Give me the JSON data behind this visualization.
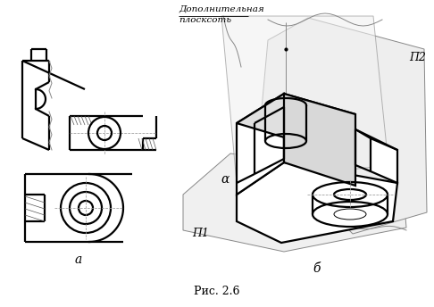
{
  "title": "Рис. 2.6",
  "label_a": "а",
  "label_b": "б",
  "text_dop1": "Дополнительная",
  "text_dop2": "плосксоть",
  "text_pi1": "Π1",
  "text_pi2": "Π2",
  "text_alpha": "α",
  "bg": "#ffffff",
  "lc": "#000000",
  "tlc": "#888888",
  "clc": "#999999",
  "hc": "#555555"
}
